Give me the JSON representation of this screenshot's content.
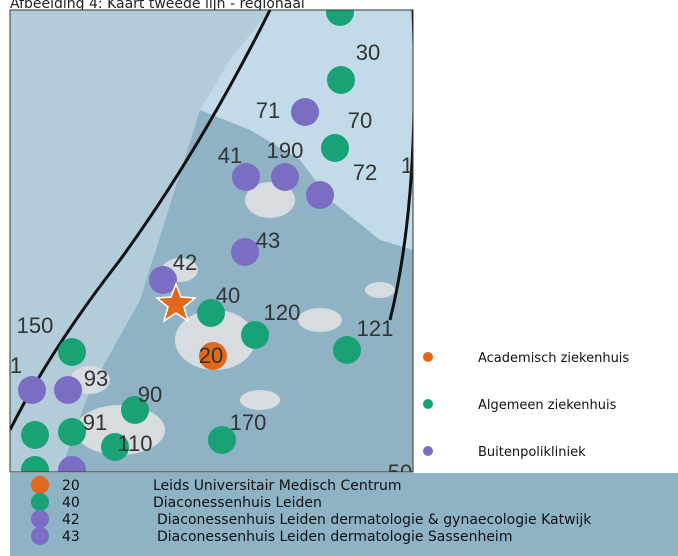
{
  "caption": "Afbeelding 4: Kaart tweede lijn - regionaal",
  "map_labels": [
    "30",
    "71",
    "70",
    "41",
    "190",
    "72",
    "1",
    "43",
    "42",
    "40",
    "120",
    "121",
    "150",
    "1",
    "93",
    "20",
    "90",
    "91",
    "110",
    "170",
    "50"
  ],
  "legend": [
    "Academisch ziekenhuis",
    "Algemeen ziekenhuis",
    "Buitenpolikliniek"
  ],
  "table": {
    "rows": [
      [
        "20",
        "Leids Universitair Medisch Centrum"
      ],
      [
        "40",
        "Diaconessenhuis Leiden"
      ],
      [
        "42",
        "Diaconessenhuis Leiden dermatologie & gynaecologie Katwijk"
      ],
      [
        "43",
        "Diaconessenhuis Leiden dermatologie Sassenheim"
      ]
    ]
  }
}
